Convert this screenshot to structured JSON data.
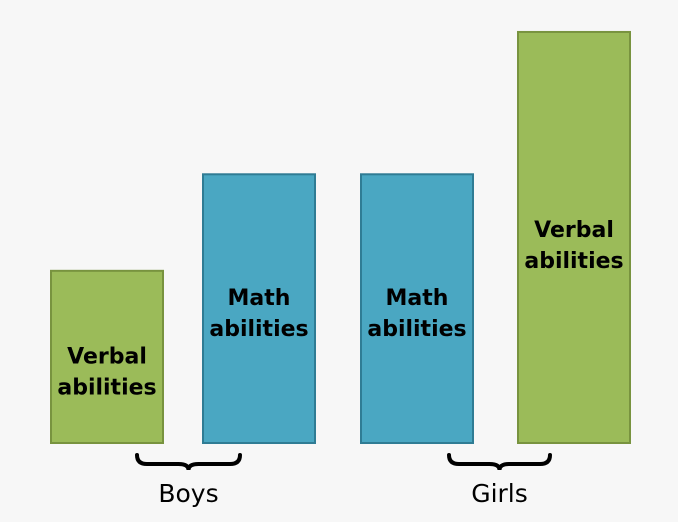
{
  "chart_data": {
    "type": "bar",
    "title": "",
    "xlabel": "",
    "ylabel": "",
    "grid": false,
    "bars": [
      {
        "label_lines": [
          "Verbal",
          "abilities"
        ],
        "value": 173,
        "group": 0,
        "color": "#9bbb59",
        "border": "#78933f"
      },
      {
        "label_lines": [
          "Math",
          "abilities"
        ],
        "value": 270,
        "group": 0,
        "color": "#4aa7c2",
        "border": "#2f7c94"
      },
      {
        "label_lines": [
          "Math",
          "abilities"
        ],
        "value": 270,
        "group": 1,
        "color": "#4aa7c2",
        "border": "#2f7c94"
      },
      {
        "label_lines": [
          "Verbal",
          "abilities"
        ],
        "value": 413,
        "group": 1,
        "color": "#9bbb59",
        "border": "#78933f"
      }
    ],
    "groups": [
      {
        "label": "Boys"
      },
      {
        "label": "Girls"
      }
    ],
    "ylim": [
      0,
      420
    ]
  }
}
